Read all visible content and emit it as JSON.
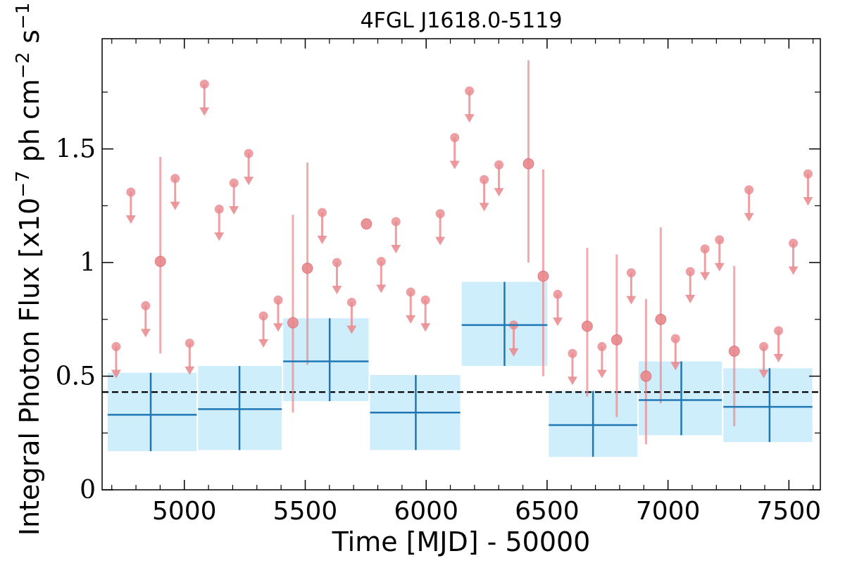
{
  "chart_data": {
    "type": "scatter",
    "title": "4FGL J1618.0-5119",
    "xlabel": "Time [MJD] - 50000",
    "ylabel_text": "Integral Photon Flux [x10",
    "ylabel_exp1": "−7",
    "ylabel_mid": " ph cm",
    "ylabel_exp2": "−2",
    "ylabel_mid2": " s",
    "ylabel_exp3": "−1",
    "ylabel_end": "]",
    "xlim": [
      4660,
      7630
    ],
    "ylim": [
      0,
      2.0
    ],
    "xticks": [
      5000,
      5500,
      6000,
      6500,
      7000,
      7500
    ],
    "xtick_labels": [
      "5000",
      "5500",
      "6000",
      "6500",
      "7000",
      "7500"
    ],
    "yticks": [
      0,
      0.5,
      1,
      1.5
    ],
    "ytick_labels": [
      "0",
      "0.5",
      "1",
      "1.5"
    ],
    "average_flux": 0.43,
    "colors": {
      "points": "#e8878c",
      "bins_fill": "#cfeefc",
      "bins_line": "#1f77b4",
      "average_line": "#000000"
    },
    "series": [
      {
        "kind": "upper_limits",
        "x": [
          4718,
          4779,
          4840,
          4962,
          5022,
          5083,
          5144,
          5205,
          5266,
          5327,
          5388,
          5570,
          5631,
          5692,
          5814,
          5875,
          5936,
          5997,
          6058,
          6118,
          6179,
          6240,
          6301,
          6362,
          6544,
          6605,
          6727,
          6848,
          7031,
          7092,
          7153,
          7213,
          7335,
          7396,
          7457,
          7518,
          7579
        ],
        "y": [
          0.63,
          1.31,
          0.81,
          1.37,
          0.645,
          1.785,
          1.235,
          1.35,
          1.48,
          0.765,
          0.835,
          1.22,
          1.0,
          0.825,
          1.005,
          1.18,
          0.87,
          0.835,
          1.215,
          1.55,
          1.755,
          1.365,
          1.43,
          0.725,
          0.86,
          0.6,
          0.63,
          0.955,
          0.665,
          0.96,
          1.06,
          1.1,
          1.32,
          0.63,
          0.7,
          1.085,
          1.39
        ]
      },
      {
        "kind": "detections",
        "x": [
          4901,
          5449,
          5509,
          5753,
          6423,
          6484,
          6666,
          6788,
          6909,
          6970,
          7274
        ],
        "y": [
          1.005,
          0.735,
          0.975,
          1.17,
          1.435,
          0.94,
          0.72,
          0.66,
          0.5,
          0.75,
          0.61
        ],
        "err_low": [
          0.6,
          0.34,
          0.55,
          1.17,
          1.0,
          0.5,
          0.41,
          0.32,
          0.2,
          0.38,
          0.28
        ],
        "err_high": [
          1.465,
          1.21,
          1.44,
          1.17,
          1.89,
          1.41,
          1.065,
          1.035,
          0.84,
          1.155,
          0.985
        ]
      },
      {
        "kind": "binned",
        "x_start": [
          4680,
          5054,
          5406,
          5765,
          6144,
          6504,
          6876,
          7226
        ],
        "x_end": [
          5054,
          5406,
          5765,
          6144,
          6504,
          6876,
          7226,
          7600
        ],
        "x_center": [
          4861,
          5228,
          5601,
          5957,
          6324,
          6690,
          7055,
          7420
        ],
        "y": [
          0.33,
          0.355,
          0.565,
          0.34,
          0.725,
          0.285,
          0.395,
          0.365
        ],
        "y_low": [
          0.17,
          0.175,
          0.39,
          0.175,
          0.545,
          0.145,
          0.24,
          0.21
        ],
        "y_high": [
          0.515,
          0.545,
          0.755,
          0.505,
          0.915,
          0.435,
          0.565,
          0.535
        ]
      }
    ]
  }
}
